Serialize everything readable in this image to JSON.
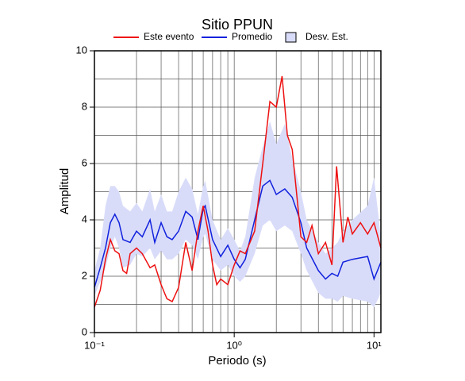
{
  "chart_data": {
    "type": "line",
    "title": "Sitio PPUN",
    "x_label": "Periodo (s)",
    "y_label": "Amplitud",
    "x_scale": "log",
    "xlim": [
      0.1,
      11.2
    ],
    "ylim": [
      0,
      10
    ],
    "xticks": [
      {
        "value": 0.1,
        "label": "10⁻¹"
      },
      {
        "value": 1,
        "label": "10⁰"
      },
      {
        "value": 10,
        "label": "10¹"
      }
    ],
    "xminor_ticks": [
      0.2,
      0.3,
      0.4,
      0.5,
      0.6,
      0.7,
      0.8,
      0.9,
      2,
      3,
      4,
      5,
      6,
      7,
      8,
      9
    ],
    "yticks": [
      0,
      2,
      4,
      6,
      8,
      10
    ],
    "yminor_ticks": [
      1,
      3,
      5,
      7,
      9
    ],
    "grid": true,
    "series": [
      {
        "name": "Este evento",
        "color": "#ee1111",
        "x": [
          0.1,
          0.11,
          0.12,
          0.13,
          0.14,
          0.15,
          0.16,
          0.17,
          0.18,
          0.2,
          0.22,
          0.25,
          0.27,
          0.3,
          0.33,
          0.36,
          0.4,
          0.45,
          0.5,
          0.55,
          0.6,
          0.65,
          0.7,
          0.75,
          0.8,
          0.9,
          1.0,
          1.1,
          1.2,
          1.4,
          1.6,
          1.8,
          2.0,
          2.2,
          2.4,
          2.6,
          3.0,
          3.3,
          3.6,
          4.0,
          4.5,
          5.0,
          5.4,
          6.0,
          6.5,
          7.0,
          8.0,
          9.0,
          10,
          11.2
        ],
        "values": [
          0.9,
          1.5,
          2.6,
          3.3,
          2.9,
          2.8,
          2.2,
          2.1,
          2.8,
          3.0,
          2.8,
          2.3,
          2.4,
          1.7,
          1.2,
          1.1,
          1.6,
          3.2,
          2.2,
          3.6,
          4.5,
          3.6,
          2.4,
          1.7,
          1.9,
          1.7,
          2.4,
          2.9,
          2.8,
          3.6,
          6.0,
          8.2,
          8.0,
          9.1,
          7.0,
          6.5,
          3.4,
          3.2,
          3.8,
          2.8,
          3.2,
          2.4,
          5.9,
          3.2,
          4.1,
          3.5,
          3.9,
          3.5,
          3.9,
          3.0
        ]
      },
      {
        "name": "Promedio",
        "color": "#1122dd",
        "x": [
          0.1,
          0.11,
          0.12,
          0.13,
          0.14,
          0.15,
          0.16,
          0.18,
          0.2,
          0.22,
          0.25,
          0.27,
          0.3,
          0.33,
          0.36,
          0.4,
          0.45,
          0.5,
          0.55,
          0.6,
          0.62,
          0.7,
          0.8,
          0.9,
          1.0,
          1.1,
          1.2,
          1.4,
          1.6,
          1.8,
          2.0,
          2.3,
          2.6,
          3.0,
          3.3,
          4.0,
          4.5,
          5.0,
          5.5,
          6.0,
          7.0,
          9.0,
          10,
          11.2
        ],
        "values": [
          1.6,
          2.3,
          3.0,
          3.9,
          4.2,
          3.9,
          3.3,
          3.2,
          3.6,
          3.4,
          4.0,
          3.2,
          3.9,
          3.4,
          3.3,
          3.6,
          4.3,
          4.1,
          3.3,
          4.4,
          4.5,
          3.3,
          2.7,
          3.1,
          2.6,
          2.3,
          2.6,
          4.0,
          5.2,
          5.4,
          4.9,
          5.1,
          4.8,
          3.9,
          3.0,
          2.2,
          1.9,
          2.1,
          2.0,
          2.5,
          2.6,
          2.7,
          1.9,
          2.5
        ]
      },
      {
        "name": "Desv. Est.",
        "color": "#d9dcf9",
        "edge_color": "#000000",
        "x": [
          0.1,
          0.11,
          0.12,
          0.13,
          0.14,
          0.15,
          0.16,
          0.18,
          0.2,
          0.22,
          0.25,
          0.27,
          0.3,
          0.33,
          0.36,
          0.4,
          0.45,
          0.5,
          0.55,
          0.6,
          0.62,
          0.7,
          0.8,
          0.9,
          1.0,
          1.1,
          1.2,
          1.4,
          1.6,
          1.8,
          2.0,
          2.3,
          2.6,
          3.0,
          3.3,
          4.0,
          4.5,
          5.0,
          5.5,
          6.0,
          7.0,
          9.0,
          10,
          11.2
        ],
        "lower": [
          1.3,
          1.8,
          2.3,
          3.0,
          3.4,
          3.0,
          2.3,
          2.4,
          2.8,
          2.7,
          3.0,
          2.6,
          2.9,
          2.6,
          2.6,
          2.8,
          3.3,
          3.1,
          2.6,
          3.4,
          3.5,
          2.6,
          2.2,
          2.4,
          2.0,
          1.8,
          2.0,
          2.8,
          3.8,
          4.0,
          3.6,
          3.8,
          3.6,
          2.8,
          2.2,
          1.4,
          1.2,
          1.2,
          1.1,
          1.3,
          1.2,
          1.1,
          0.9,
          1.4
        ],
        "upper": [
          2.2,
          3.0,
          4.5,
          5.2,
          5.2,
          5.0,
          4.5,
          4.3,
          4.6,
          4.3,
          5.1,
          4.3,
          4.9,
          4.3,
          4.3,
          5.0,
          5.5,
          5.1,
          4.2,
          5.2,
          5.4,
          4.0,
          3.3,
          3.7,
          3.3,
          2.9,
          3.4,
          5.5,
          6.6,
          7.5,
          6.7,
          7.4,
          6.2,
          5.0,
          4.0,
          3.2,
          2.8,
          3.0,
          3.2,
          3.6,
          4.0,
          4.5,
          5.5,
          3.4
        ]
      }
    ]
  }
}
